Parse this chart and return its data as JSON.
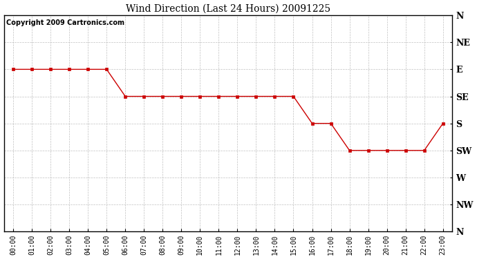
{
  "title": "Wind Direction (Last 24 Hours) 20091225",
  "copyright": "Copyright 2009 Cartronics.com",
  "background_color": "#ffffff",
  "plot_bg_color": "#ffffff",
  "grid_color": "#b0b0b0",
  "line_color": "#cc0000",
  "marker_color": "#cc0000",
  "x_labels": [
    "00:00",
    "01:00",
    "02:00",
    "03:00",
    "04:00",
    "05:00",
    "06:00",
    "07:00",
    "08:00",
    "09:00",
    "10:00",
    "11:00",
    "12:00",
    "13:00",
    "14:00",
    "15:00",
    "16:00",
    "17:00",
    "18:00",
    "19:00",
    "20:00",
    "21:00",
    "22:00",
    "23:00"
  ],
  "y_labels": [
    "N",
    "NW",
    "W",
    "SW",
    "S",
    "SE",
    "E",
    "NE",
    "N"
  ],
  "y_ticks": [
    0,
    1,
    2,
    3,
    4,
    5,
    6,
    7,
    8
  ],
  "data_hours": [
    0,
    1,
    2,
    3,
    4,
    5,
    6,
    7,
    8,
    9,
    10,
    11,
    12,
    13,
    14,
    15,
    16,
    17,
    18,
    19,
    20,
    21,
    22,
    23
  ],
  "data_values": [
    6,
    6,
    6,
    6,
    6,
    6,
    5,
    5,
    5,
    5,
    5,
    5,
    5,
    5,
    5,
    5,
    4,
    4,
    3,
    3,
    3,
    3,
    3,
    4
  ],
  "title_fontsize": 10,
  "copyright_fontsize": 7,
  "ytick_fontsize": 9,
  "xtick_fontsize": 7
}
